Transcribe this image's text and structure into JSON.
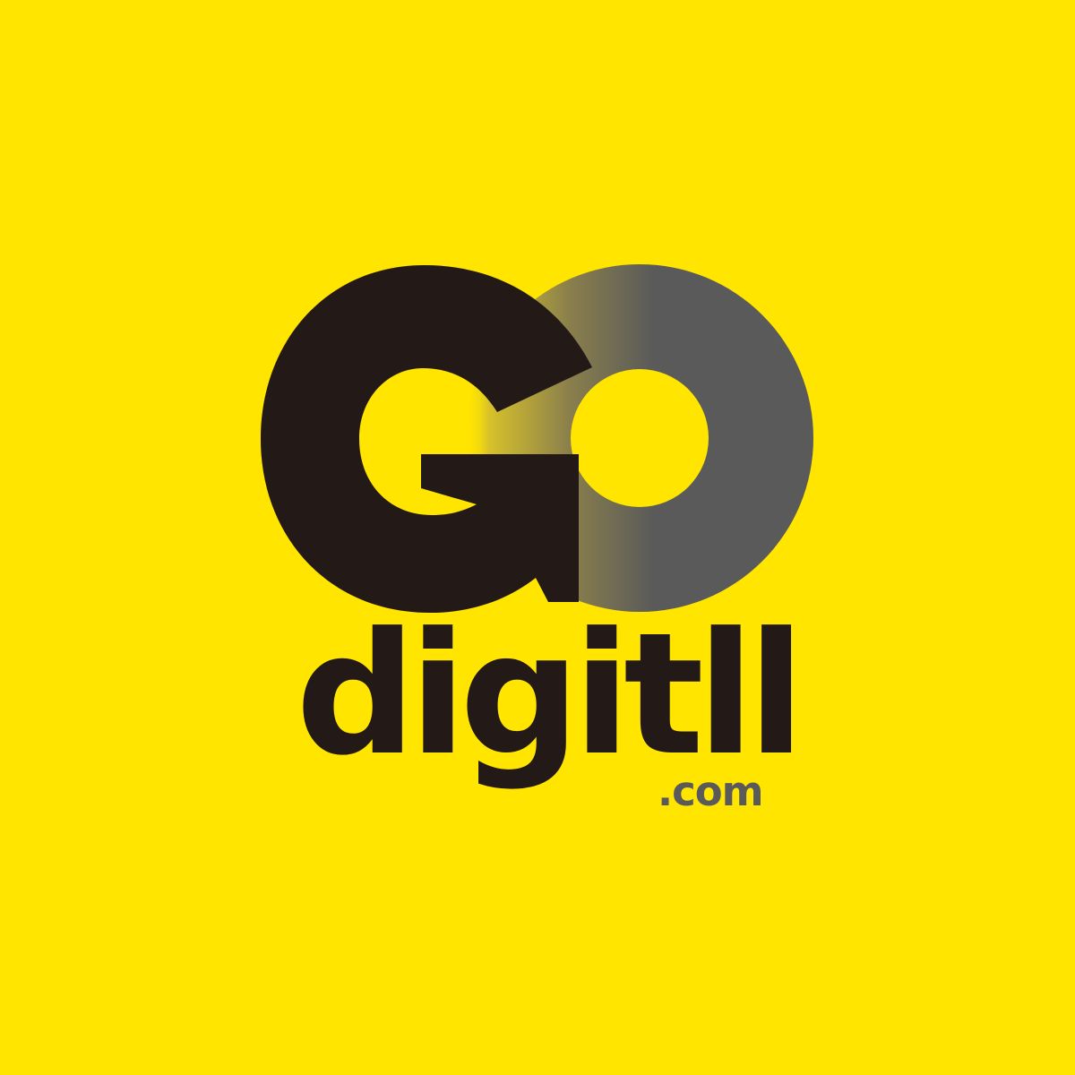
{
  "brand": {
    "name": "digitll",
    "domain_suffix": ".com",
    "mark_letters": "GO"
  },
  "colors": {
    "background": "#FFE500",
    "primary_dark": "#231A18",
    "secondary_gray": "#5A5A5A"
  }
}
